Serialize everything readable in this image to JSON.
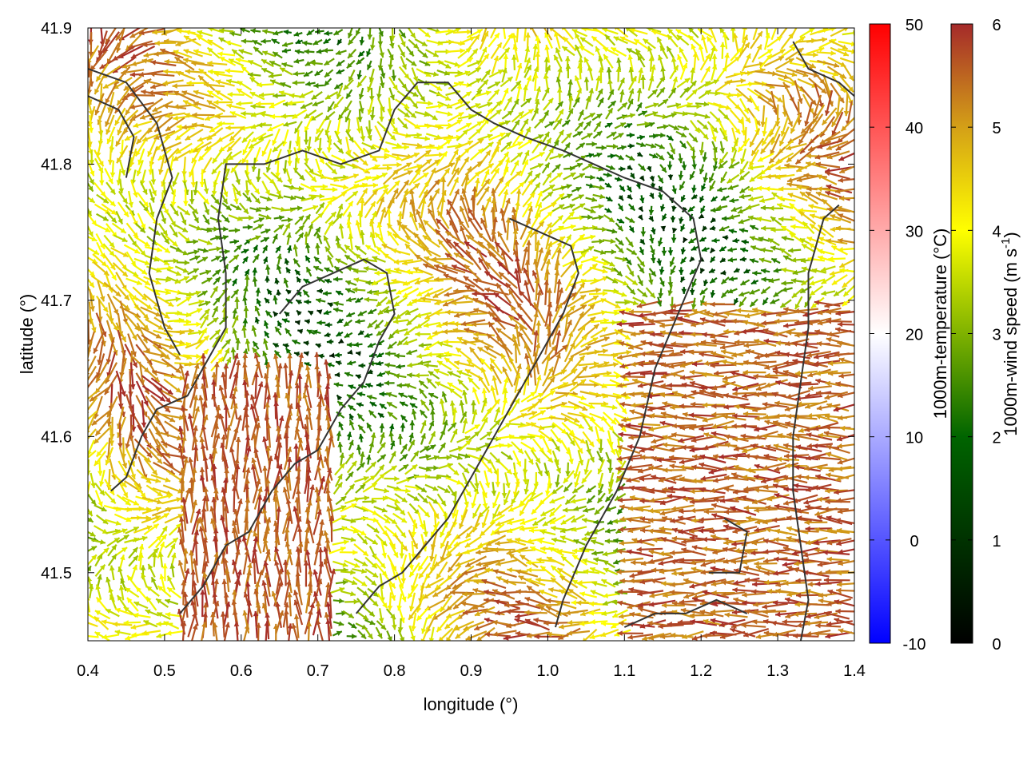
{
  "chart_data": {
    "type": "vector-field",
    "xlabel": "longitude (°)",
    "ylabel": "latitude (°)",
    "xlim": [
      0.4,
      1.4
    ],
    "ylim": [
      41.45,
      41.9
    ],
    "x_ticks": [
      {
        "v": 0.4,
        "label": "0.4"
      },
      {
        "v": 0.5,
        "label": "0.5"
      },
      {
        "v": 0.6,
        "label": "0.6"
      },
      {
        "v": 0.7,
        "label": "0.7"
      },
      {
        "v": 0.8,
        "label": "0.8"
      },
      {
        "v": 0.9,
        "label": "0.9"
      },
      {
        "v": 1.0,
        "label": "1.0"
      },
      {
        "v": 1.1,
        "label": "1.1"
      },
      {
        "v": 1.2,
        "label": "1.2"
      },
      {
        "v": 1.3,
        "label": "1.3"
      },
      {
        "v": 1.4,
        "label": "1.4"
      }
    ],
    "y_ticks": [
      {
        "v": 41.5,
        "label": "41.5"
      },
      {
        "v": 41.6,
        "label": "41.6"
      },
      {
        "v": 41.7,
        "label": "41.7"
      },
      {
        "v": 41.8,
        "label": "41.8"
      },
      {
        "v": 41.9,
        "label": "41.9"
      }
    ],
    "colorbars": [
      {
        "label": "1000m-temperature (°C)",
        "range": [
          -10,
          50
        ],
        "ticks": [
          {
            "v": -10,
            "label": "-10"
          },
          {
            "v": 0,
            "label": "0"
          },
          {
            "v": 10,
            "label": "10"
          },
          {
            "v": 20,
            "label": "20"
          },
          {
            "v": 30,
            "label": "30"
          },
          {
            "v": 40,
            "label": "40"
          },
          {
            "v": 50,
            "label": "50"
          }
        ],
        "colors": [
          "#0000ff",
          "#ffffff",
          "#ff0000"
        ]
      },
      {
        "label_main": "1000m-wind speed (m s",
        "label_sup": "-1",
        "label_end": ")",
        "range": [
          0,
          6
        ],
        "ticks": [
          {
            "v": 0,
            "label": "0"
          },
          {
            "v": 1,
            "label": "1"
          },
          {
            "v": 2,
            "label": "2"
          },
          {
            "v": 3,
            "label": "3"
          },
          {
            "v": 4,
            "label": "4"
          },
          {
            "v": 5,
            "label": "5"
          },
          {
            "v": 6,
            "label": "6"
          }
        ],
        "colors": [
          "#000000",
          "#006400",
          "#7fb200",
          "#ffff00",
          "#d4a017",
          "#a52a2a"
        ]
      }
    ],
    "contours": [
      [
        [
          0.43,
          41.56
        ],
        [
          0.45,
          41.57
        ],
        [
          0.47,
          41.6
        ],
        [
          0.49,
          41.62
        ],
        [
          0.53,
          41.63
        ],
        [
          0.56,
          41.66
        ],
        [
          0.58,
          41.68
        ],
        [
          0.58,
          41.72
        ],
        [
          0.57,
          41.76
        ],
        [
          0.58,
          41.8
        ],
        [
          0.63,
          41.8
        ],
        [
          0.68,
          41.81
        ],
        [
          0.73,
          41.8
        ],
        [
          0.78,
          41.81
        ],
        [
          0.8,
          41.84
        ],
        [
          0.83,
          41.86
        ],
        [
          0.87,
          41.86
        ],
        [
          0.9,
          41.84
        ],
        [
          0.93,
          41.83
        ],
        [
          0.97,
          41.82
        ],
        [
          1.02,
          41.81
        ],
        [
          1.06,
          41.8
        ],
        [
          1.1,
          41.79
        ],
        [
          1.15,
          41.78
        ],
        [
          1.19,
          41.76
        ],
        [
          1.2,
          41.73
        ],
        [
          1.17,
          41.69
        ],
        [
          1.14,
          41.65
        ],
        [
          1.12,
          41.6
        ],
        [
          1.09,
          41.56
        ],
        [
          1.05,
          41.52
        ],
        [
          1.02,
          41.48
        ],
        [
          1.01,
          41.46
        ]
      ],
      [
        [
          0.4,
          41.87
        ],
        [
          0.45,
          41.86
        ],
        [
          0.49,
          41.83
        ],
        [
          0.51,
          41.79
        ],
        [
          0.49,
          41.76
        ],
        [
          0.48,
          41.72
        ],
        [
          0.5,
          41.68
        ],
        [
          0.52,
          41.66
        ]
      ],
      [
        [
          0.52,
          41.47
        ],
        [
          0.55,
          41.49
        ],
        [
          0.58,
          41.52
        ],
        [
          0.61,
          41.53
        ],
        [
          0.64,
          41.56
        ],
        [
          0.67,
          41.58
        ],
        [
          0.7,
          41.59
        ],
        [
          0.73,
          41.62
        ],
        [
          0.76,
          41.64
        ],
        [
          0.78,
          41.67
        ],
        [
          0.8,
          41.69
        ],
        [
          0.79,
          41.72
        ],
        [
          0.76,
          41.73
        ],
        [
          0.72,
          41.72
        ],
        [
          0.68,
          41.71
        ],
        [
          0.65,
          41.69
        ]
      ],
      [
        [
          0.75,
          41.47
        ],
        [
          0.78,
          41.49
        ],
        [
          0.81,
          41.5
        ],
        [
          0.84,
          41.52
        ],
        [
          0.87,
          41.54
        ],
        [
          0.9,
          41.57
        ],
        [
          0.93,
          41.6
        ],
        [
          0.96,
          41.63
        ],
        [
          0.99,
          41.66
        ],
        [
          1.02,
          41.69
        ],
        [
          1.04,
          41.72
        ],
        [
          1.03,
          41.74
        ],
        [
          0.99,
          41.75
        ],
        [
          0.95,
          41.76
        ]
      ],
      [
        [
          1.33,
          41.45
        ],
        [
          1.34,
          41.48
        ],
        [
          1.33,
          41.52
        ],
        [
          1.32,
          41.56
        ],
        [
          1.32,
          41.6
        ],
        [
          1.33,
          41.64
        ],
        [
          1.34,
          41.68
        ],
        [
          1.34,
          41.72
        ],
        [
          1.36,
          41.76
        ],
        [
          1.38,
          41.77
        ]
      ],
      [
        [
          1.1,
          41.46
        ],
        [
          1.14,
          41.47
        ],
        [
          1.18,
          41.47
        ],
        [
          1.22,
          41.48
        ],
        [
          1.26,
          41.47
        ]
      ],
      [
        [
          1.21,
          41.5
        ],
        [
          1.25,
          41.5
        ],
        [
          1.26,
          41.53
        ],
        [
          1.23,
          41.54
        ]
      ],
      [
        [
          0.4,
          41.85
        ],
        [
          0.44,
          41.84
        ],
        [
          0.46,
          41.82
        ],
        [
          0.45,
          41.79
        ]
      ],
      [
        [
          1.32,
          41.89
        ],
        [
          1.34,
          41.87
        ],
        [
          1.38,
          41.86
        ],
        [
          1.4,
          41.85
        ]
      ]
    ]
  }
}
